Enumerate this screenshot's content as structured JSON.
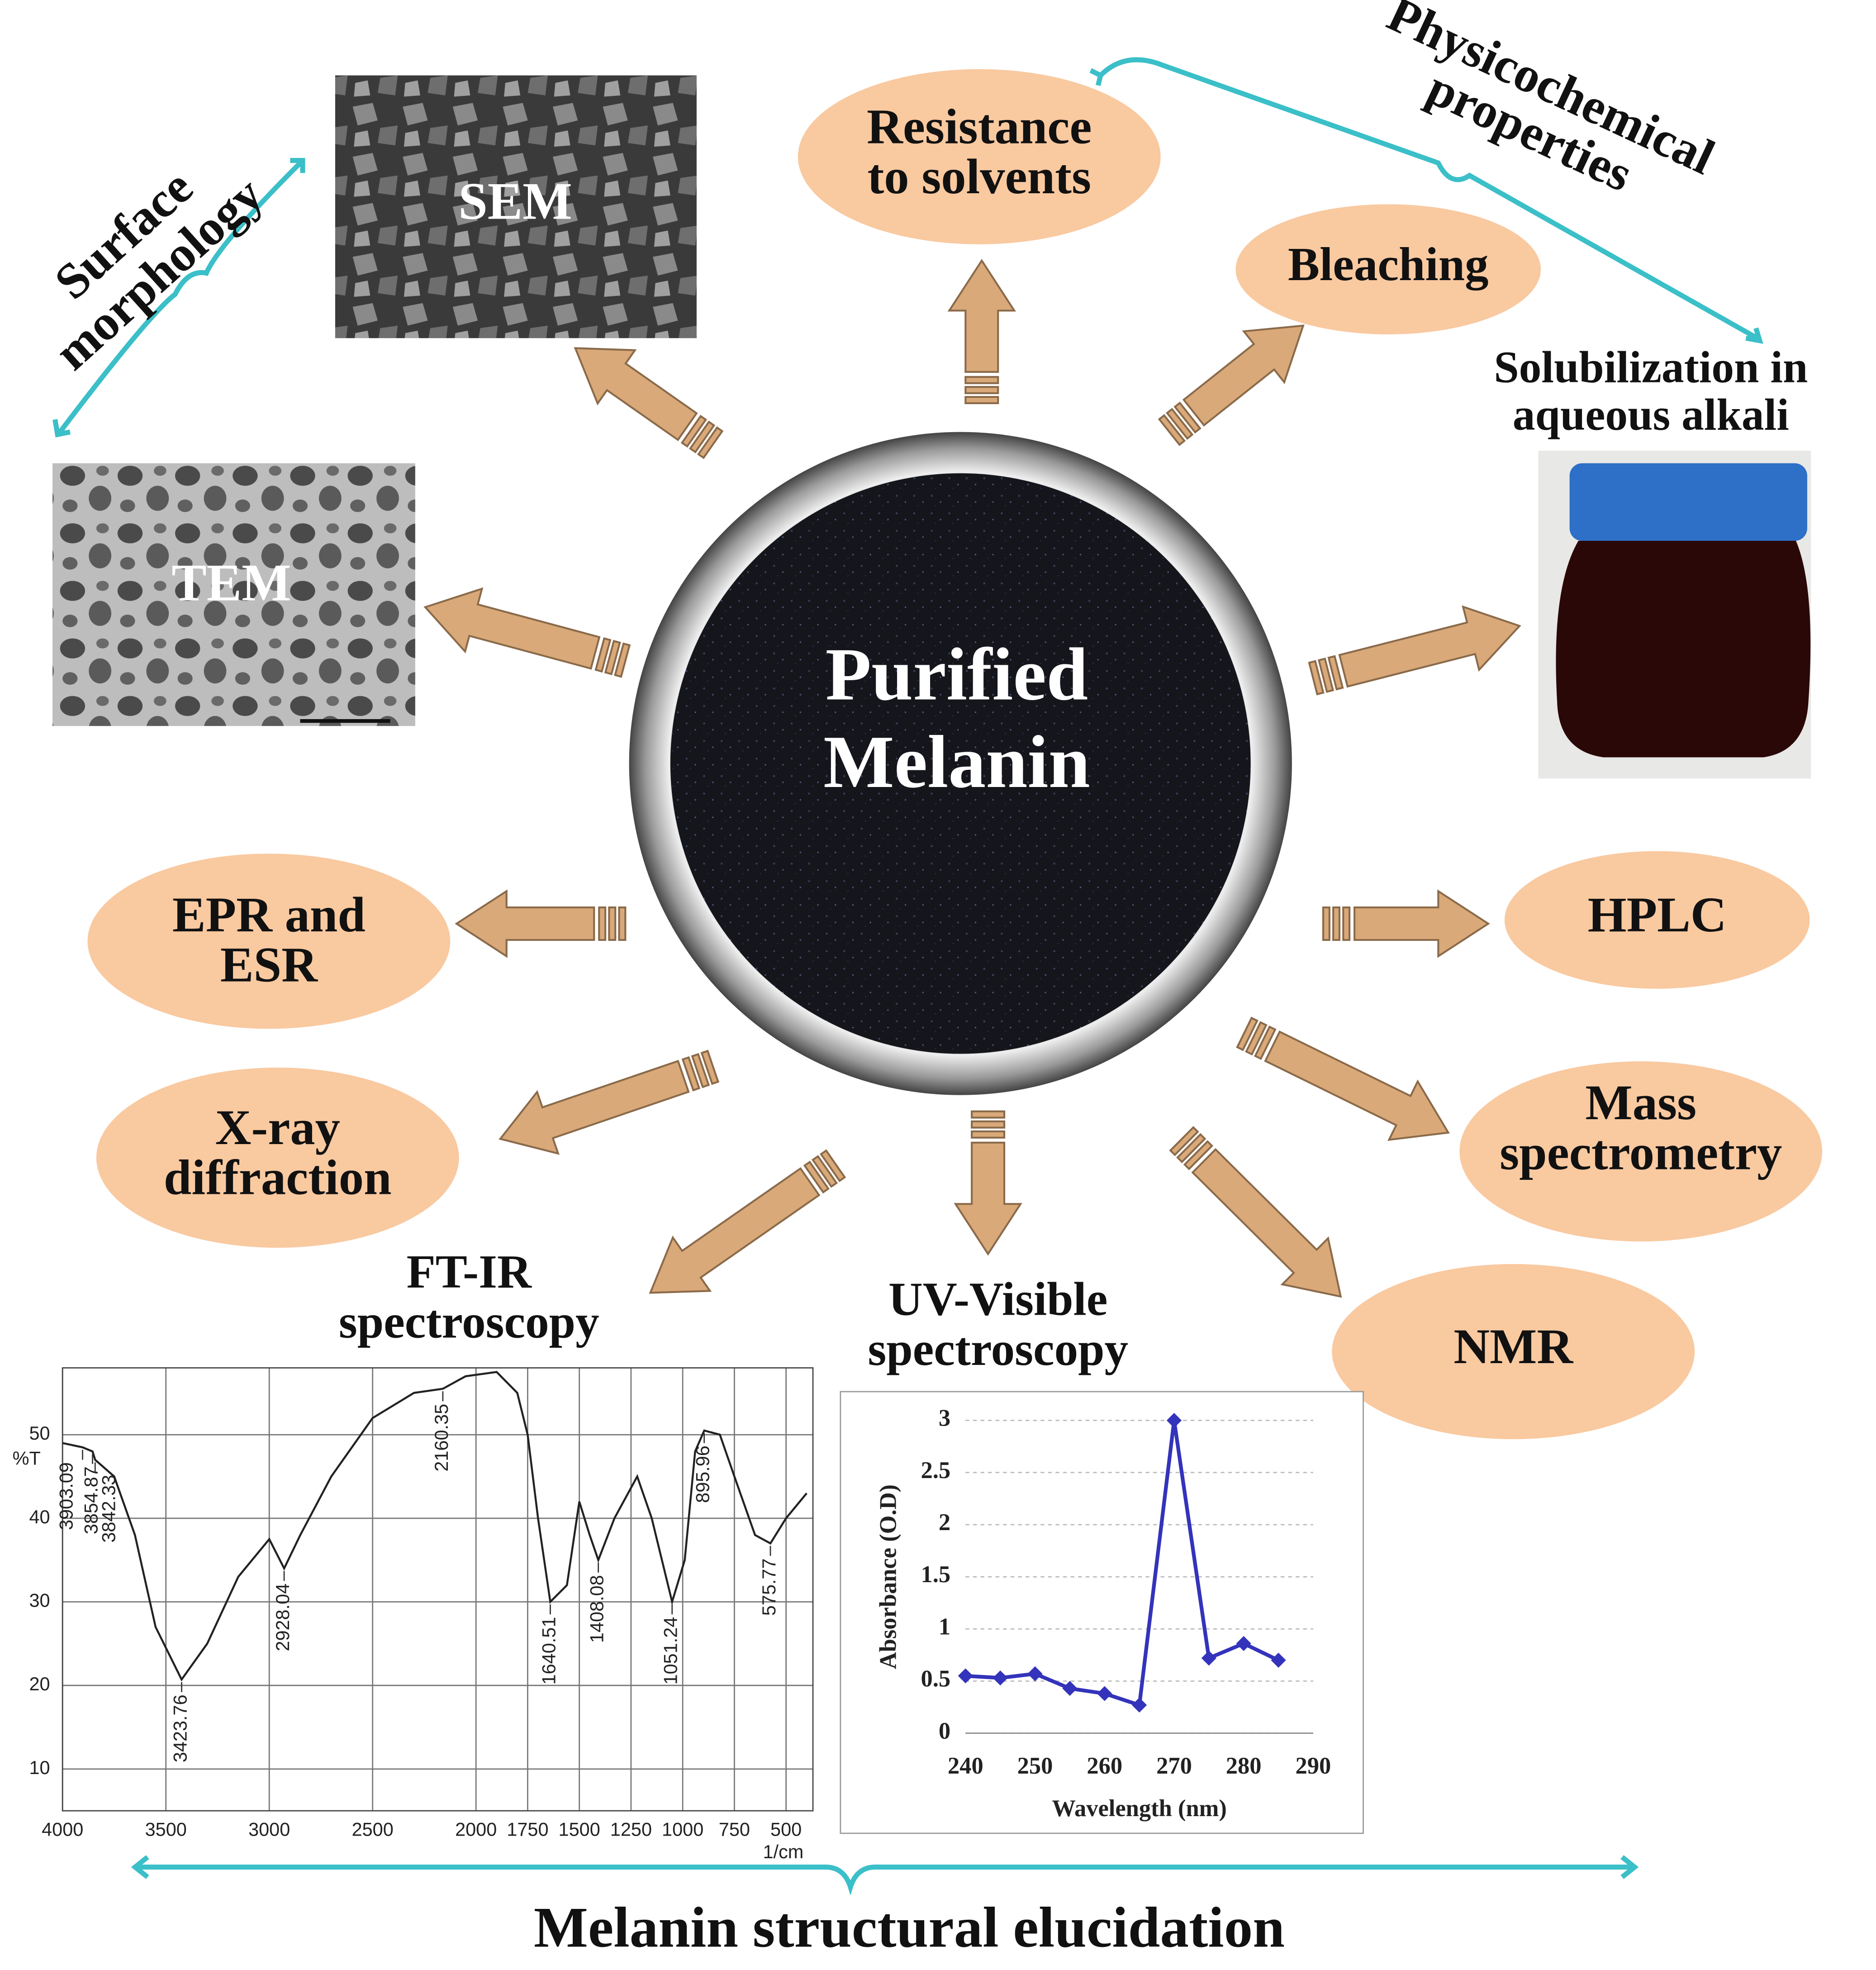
{
  "center": [
    "Purified",
    "Melanin"
  ],
  "groups": {
    "surface": [
      "Surface",
      "morphology"
    ],
    "physicochemical": [
      "Physicochemical",
      "properties"
    ],
    "structural": "Melanin structural elucidation"
  },
  "images": [
    "SEM",
    "TEM"
  ],
  "nodes": [
    {
      "lines": [
        "Resistance",
        "to solvents"
      ]
    },
    {
      "lines": [
        "Bleaching"
      ]
    },
    {
      "lines": [
        "Solubilization in",
        "aqueous alkali"
      ]
    },
    {
      "lines": [
        "EPR and",
        "ESR"
      ]
    },
    {
      "lines": [
        "HPLC"
      ]
    },
    {
      "lines": [
        "X-ray",
        "diffraction"
      ]
    },
    {
      "lines": [
        "Mass",
        "spectrometry"
      ]
    },
    {
      "lines": [
        "NMR"
      ]
    }
  ],
  "chart_data": [
    {
      "type": "line",
      "title": [
        "FT-IR",
        "spectroscopy"
      ],
      "y_label": "%T",
      "x_label": "1/cm",
      "x": [
        4000,
        3903.09,
        3854.87,
        3842.33,
        3750,
        3650,
        3550,
        3423.76,
        3300,
        3150,
        3000,
        2928.04,
        2850,
        2700,
        2500,
        2300,
        2160.35,
        2050,
        1900,
        1800,
        1750,
        1700,
        1640.51,
        1560,
        1500,
        1450,
        1408.08,
        1330,
        1220,
        1150,
        1051.24,
        990,
        940,
        895.96,
        820,
        750,
        650,
        575.77,
        500,
        400
      ],
      "values": [
        49,
        48.5,
        48,
        47,
        45,
        38,
        27,
        20.7,
        25,
        33,
        37.5,
        34,
        38,
        45,
        52,
        55,
        55.5,
        57,
        57.5,
        55,
        50,
        40,
        30,
        32,
        42,
        38,
        35,
        40,
        45,
        40,
        30,
        35,
        48,
        50.5,
        50,
        45,
        38,
        37,
        40,
        43
      ],
      "peaks": [
        3903.09,
        3854.87,
        3842.33,
        3423.76,
        2928.04,
        2160.35,
        1640.51,
        1408.08,
        1051.24,
        895.96,
        575.77
      ],
      "color": "#222222",
      "xlim": [
        4000,
        370
      ],
      "xticks": [
        4000,
        3500,
        3000,
        2500,
        2000,
        1750,
        1500,
        1250,
        1000,
        750,
        500
      ],
      "ylim": [
        5,
        58
      ],
      "yticks": [
        10,
        20,
        30,
        40,
        50
      ],
      "grid": true
    },
    {
      "type": "line",
      "title": [
        "UV-Visible",
        "spectroscopy"
      ],
      "y_label": "Absorbance (O.D)",
      "x_label": "Wavelength (nm)",
      "x": [
        240,
        245,
        250,
        255,
        260,
        265,
        270,
        275,
        280,
        285
      ],
      "values": [
        0.55,
        0.53,
        0.57,
        0.43,
        0.38,
        0.27,
        3.0,
        0.72,
        0.86,
        0.7
      ],
      "color": "#3333bb",
      "xlim": [
        240,
        290
      ],
      "xticks": [
        240,
        250,
        260,
        270,
        280,
        290
      ],
      "ylim": [
        0,
        3
      ],
      "yticks": [
        0,
        0.5,
        1,
        1.5,
        2,
        2.5,
        3
      ],
      "grid": true
    }
  ]
}
